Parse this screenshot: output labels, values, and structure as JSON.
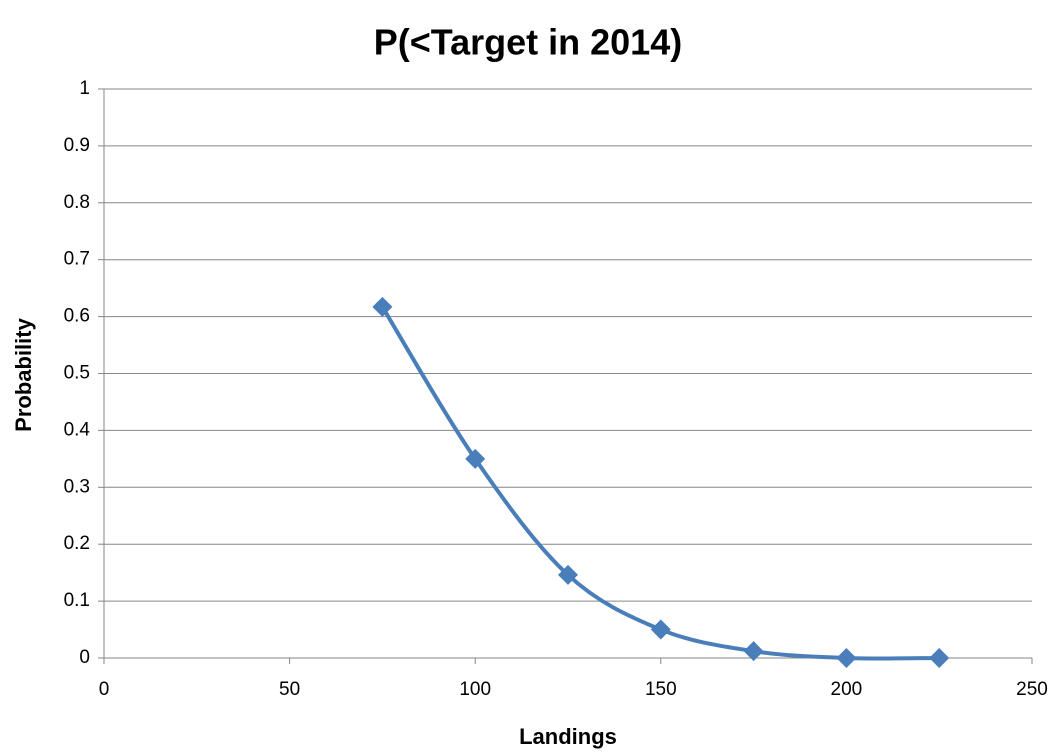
{
  "chart_data": {
    "type": "scatter",
    "smooth": true,
    "title": "P(<Target in 2014)",
    "x_label": "Landings",
    "y_label": "Probability",
    "x": [
      75,
      100,
      125,
      150,
      175,
      200,
      225
    ],
    "values": [
      0.617,
      0.35,
      0.146,
      0.05,
      0.012,
      0.0,
      0.0
    ],
    "color": "#4a7ebb",
    "marker": "diamond",
    "xlim": [
      0,
      250
    ],
    "xticks": [
      0,
      50,
      100,
      150,
      200,
      250
    ],
    "ylim": [
      0,
      1
    ],
    "yticks": [
      0,
      0.1,
      0.2,
      0.3,
      0.4,
      0.5,
      0.6,
      0.7,
      0.8,
      0.9,
      1
    ],
    "grid": true
  }
}
